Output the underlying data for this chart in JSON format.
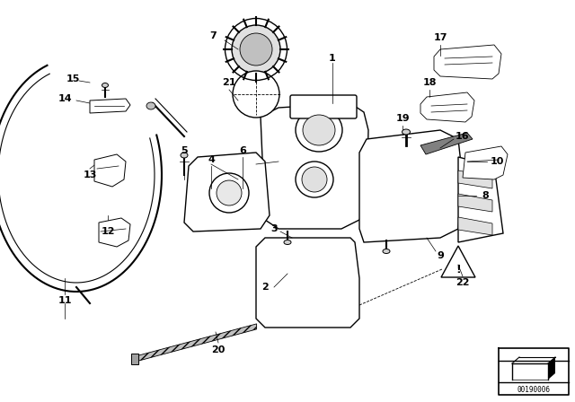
{
  "bg_color": "#ffffff",
  "image_id": "00190006",
  "figsize": [
    6.4,
    4.48
  ],
  "dpi": 100
}
